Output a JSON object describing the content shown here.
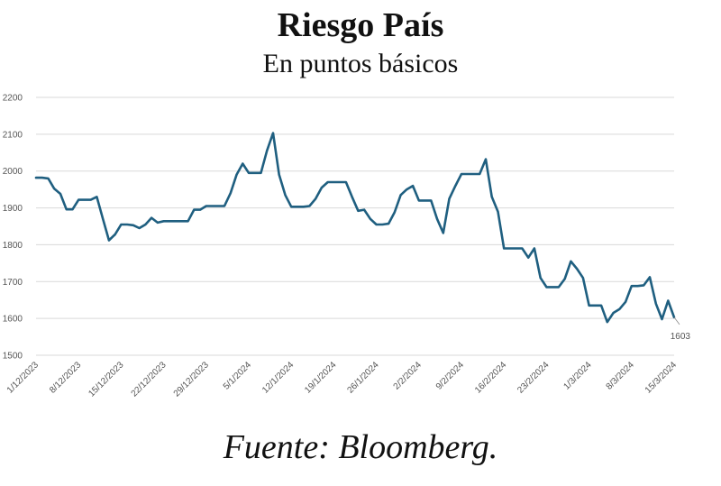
{
  "chart_data": {
    "type": "line",
    "title": "Riesgo País",
    "subtitle": "En puntos básicos",
    "source": "Fuente: Bloomberg.",
    "xlabel": "",
    "ylabel": "",
    "ylim": [
      1500,
      2200
    ],
    "yticks": [
      "2200",
      "2100",
      "2000",
      "1900",
      "1800",
      "1700",
      "1600",
      "1500"
    ],
    "xticks": [
      "1/12/2023",
      "8/12/2023",
      "15/12/2023",
      "22/12/2023",
      "29/12/2023",
      "5/1/2024",
      "12/1/2024",
      "19/1/2024",
      "26/1/2024",
      "2/2/2024",
      "9/2/2024",
      "16/2/2024",
      "23/2/2024",
      "1/3/2024",
      "8/3/2024",
      "15/3/2024"
    ],
    "last_value_label": "1603",
    "grid": true,
    "line_color": "#1f5f80",
    "series": [
      {
        "name": "",
        "values": [
          1982,
          1982,
          1980,
          1952,
          1938,
          1896,
          1896,
          1922,
          1922,
          1922,
          1930,
          1870,
          1812,
          1828,
          1855,
          1855,
          1853,
          1845,
          1855,
          1873,
          1860,
          1864,
          1864,
          1864,
          1864,
          1864,
          1895,
          1895,
          1905,
          1905,
          1905,
          1905,
          1940,
          1990,
          2020,
          1995,
          1995,
          1995,
          2055,
          2103,
          1990,
          1935,
          1903,
          1903,
          1903,
          1905,
          1925,
          1955,
          1970,
          1970,
          1970,
          1970,
          1930,
          1892,
          1895,
          1870,
          1855,
          1855,
          1857,
          1888,
          1935,
          1950,
          1960,
          1920,
          1920,
          1920,
          1870,
          1832,
          1925,
          1960,
          1992,
          1992,
          1992,
          1992,
          2032,
          1930,
          1890,
          1790,
          1790,
          1790,
          1790,
          1765,
          1790,
          1710,
          1685,
          1685,
          1685,
          1707,
          1755,
          1735,
          1710,
          1635,
          1635,
          1635,
          1590,
          1615,
          1625,
          1645,
          1688,
          1688,
          1690,
          1712,
          1640,
          1598,
          1648,
          1603
        ]
      }
    ]
  }
}
